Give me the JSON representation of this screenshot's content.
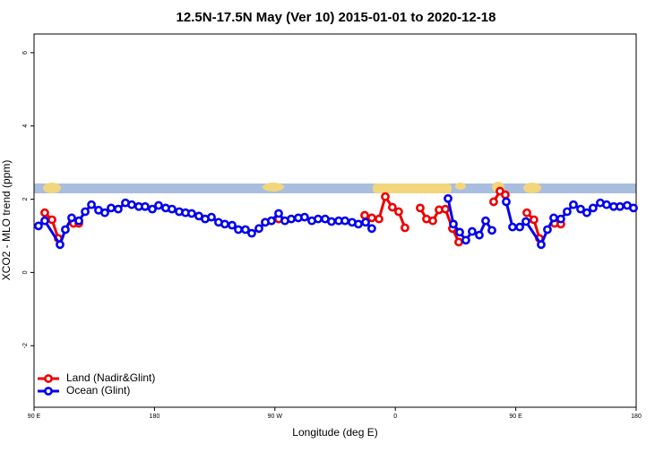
{
  "chart_data": {
    "type": "line",
    "title": "12.5N-17.5N May (Ver 10)   2015-01-01 to 2020-12-18",
    "x_label": "Longitude (deg E)",
    "y_label": "XCO2 - MLO trend (ppm)",
    "xlim": [
      90,
      540
    ],
    "xticks": [
      {
        "value": 90,
        "label": "90 E"
      },
      {
        "value": 180,
        "label": "180"
      },
      {
        "value": 270,
        "label": "90 W"
      },
      {
        "value": 360,
        "label": "0"
      },
      {
        "value": 450,
        "label": "90 E"
      },
      {
        "value": 540,
        "label": "180"
      }
    ],
    "ylim": [
      -3.68,
      6.51
    ],
    "yticks": [
      -2,
      0,
      2,
      4,
      6
    ],
    "legend": "bottom-left",
    "series": [
      {
        "name": "Land (Nadir&Glint)",
        "color": "#ee0000",
        "x": [
          98.0,
          103.4,
          108.1,
          null,
          119.5,
          123.5,
          null,
          262.8,
          267.4,
          272.8,
          null,
          337.1,
          342.4,
          347.8,
          352.5,
          357.8,
          362.5,
          367.2,
          null,
          378.6,
          383.3,
          388.0,
          392.7,
          397.4,
          402.7,
          407.4,
          null,
          433.5,
          438.2,
          442.2,
          null,
          458.3,
          463.6,
          467.7,
          null,
          479.0,
          483.7
        ],
        "values": [
          1.63,
          1.44,
          0.93,
          null,
          1.34,
          1.34,
          null,
          1.37,
          1.41,
          1.46,
          null,
          1.56,
          1.49,
          1.46,
          2.07,
          1.78,
          1.66,
          1.22,
          null,
          1.76,
          1.46,
          1.41,
          1.71,
          1.73,
          1.2,
          0.83,
          null,
          1.93,
          2.22,
          2.12,
          null,
          1.63,
          1.44,
          0.93,
          null,
          1.34,
          1.32
        ]
      },
      {
        "name": "Ocean (Glint)",
        "color": "#0000ee",
        "x": [
          93.3,
          98.0,
          109.4,
          113.4,
          118.1,
          123.5,
          128.2,
          132.9,
          138.2,
          142.9,
          147.6,
          152.9,
          158.3,
          163.0,
          168.3,
          173.0,
          178.4,
          183.1,
          188.4,
          193.1,
          198.5,
          203.2,
          207.8,
          213.2,
          217.9,
          222.6,
          227.9,
          232.6,
          238.0,
          242.7,
          248.0,
          252.7,
          258.1,
          262.8,
          267.4,
          272.8,
          277.5,
          282.2,
          287.5,
          292.2,
          297.6,
          302.3,
          307.6,
          312.3,
          317.7,
          322.4,
          327.7,
          332.4,
          337.8,
          342.4,
          null,
          399.4,
          403.4,
          408.1,
          412.7,
          417.4,
          422.8,
          427.5,
          432.2,
          null,
          442.9,
          447.6,
          453.0,
          457.6,
          469.0,
          473.7,
          478.4,
          483.7,
          488.4,
          493.1,
          498.5,
          503.1,
          507.8,
          513.2,
          517.9,
          523.2,
          527.9,
          533.3,
          538.0
        ],
        "values": [
          1.27,
          1.41,
          0.76,
          1.17,
          1.49,
          1.41,
          1.66,
          1.85,
          1.7,
          1.63,
          1.76,
          1.73,
          1.9,
          1.85,
          1.8,
          1.8,
          1.73,
          1.83,
          1.76,
          1.73,
          1.66,
          1.63,
          1.61,
          1.54,
          1.46,
          1.51,
          1.37,
          1.32,
          1.29,
          1.17,
          1.17,
          1.07,
          1.2,
          1.37,
          1.41,
          1.61,
          1.41,
          1.46,
          1.49,
          1.51,
          1.41,
          1.46,
          1.46,
          1.39,
          1.41,
          1.41,
          1.37,
          1.32,
          1.37,
          1.2,
          null,
          2.02,
          1.32,
          1.1,
          0.88,
          1.12,
          1.02,
          1.41,
          1.15,
          null,
          1.93,
          1.24,
          1.24,
          1.39,
          0.76,
          1.17,
          1.49,
          1.46,
          1.66,
          1.85,
          1.73,
          1.63,
          1.76,
          1.9,
          1.85,
          1.8,
          1.8,
          1.83,
          1.76
        ]
      }
    ]
  }
}
